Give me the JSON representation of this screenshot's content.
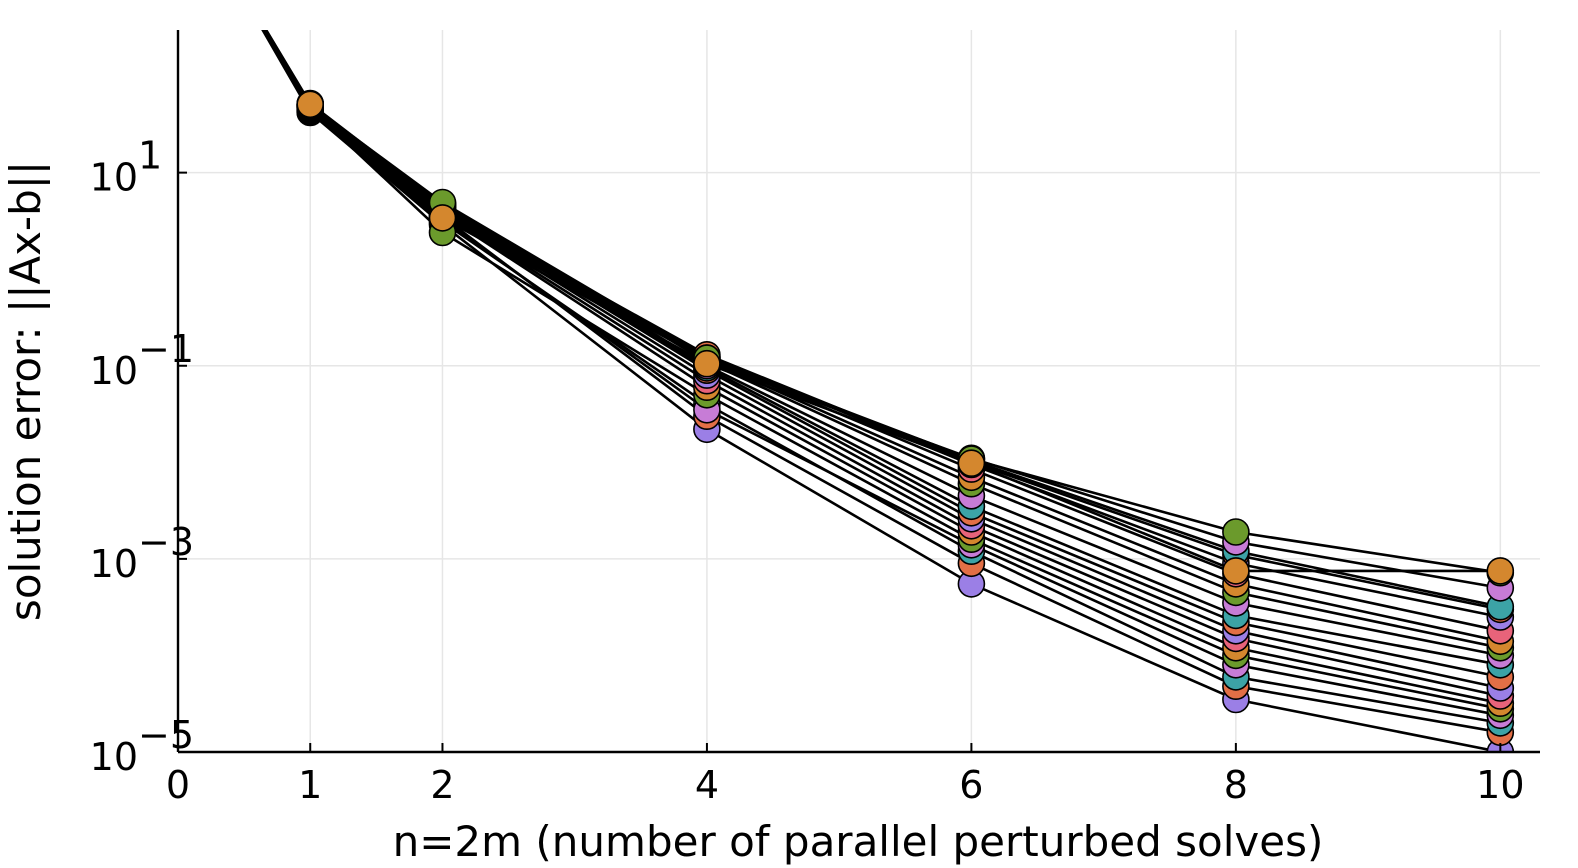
{
  "chart_data": {
    "type": "line",
    "xlabel": "n=2m (number of parallel perturbed solves)",
    "ylabel": "solution error: ||Ax-b||",
    "xlim": [
      0,
      10.3
    ],
    "ylim": [
      1e-05,
      300
    ],
    "yscale": "log",
    "grid": true,
    "legend": "none",
    "x_ticks": [
      {
        "value": 0,
        "label": "0"
      },
      {
        "value": 1,
        "label": "1"
      },
      {
        "value": 2,
        "label": "2"
      },
      {
        "value": 4,
        "label": "4"
      },
      {
        "value": 6,
        "label": "6"
      },
      {
        "value": 8,
        "label": "8"
      },
      {
        "value": 10,
        "label": "10"
      }
    ],
    "y_ticks": [
      {
        "value": 10,
        "base": "10",
        "exp": "1"
      },
      {
        "value": 0.1,
        "base": "10",
        "exp": "−1"
      },
      {
        "value": 0.001,
        "base": "10",
        "exp": "−3"
      },
      {
        "value": 1e-05,
        "base": "10",
        "exp": "−5"
      }
    ],
    "colors": [
      "#9b7fe6",
      "#e26f46",
      "#3ca3a6",
      "#c77cd6",
      "#6b9a2c",
      "#d4872e",
      "#e8637a"
    ],
    "x": [
      0,
      1,
      2,
      4,
      6,
      8,
      10
    ],
    "series": [
      {
        "values": [
          10000,
          42,
          2.9,
          0.022,
          0.00055,
          3.5e-05,
          1e-05
        ]
      },
      {
        "values": [
          10000,
          43,
          3.5,
          0.03,
          0.0009,
          4.8e-05,
          1.6e-05
        ]
      },
      {
        "values": [
          10000,
          44,
          3.1,
          0.04,
          0.0012,
          6e-05,
          2e-05
        ]
      },
      {
        "values": [
          10000,
          45,
          3.3,
          0.035,
          0.0014,
          8e-05,
          2.4e-05
        ]
      },
      {
        "values": [
          10000,
          46,
          2.4,
          0.05,
          0.0016,
          0.0001,
          2.8e-05
        ]
      },
      {
        "values": [
          10000,
          47,
          3.7,
          0.06,
          0.0019,
          0.00012,
          3.2e-05
        ]
      },
      {
        "values": [
          10000,
          48,
          3.8,
          0.07,
          0.0022,
          0.00015,
          3.8e-05
        ]
      },
      {
        "values": [
          10000,
          49,
          4.0,
          0.08,
          0.0026,
          0.00018,
          4.6e-05
        ]
      },
      {
        "values": [
          10000,
          50,
          4.2,
          0.09,
          0.003,
          0.00022,
          6e-05
        ]
      },
      {
        "values": [
          10000,
          51,
          4.4,
          0.095,
          0.0035,
          0.00026,
          8e-05
        ]
      },
      {
        "values": [
          10000,
          52,
          4.6,
          0.1,
          0.0045,
          0.00035,
          0.0001
        ]
      },
      {
        "values": [
          10000,
          48,
          4.8,
          0.11,
          0.006,
          0.00045,
          0.00012
        ]
      },
      {
        "values": [
          10000,
          49,
          3.6,
          0.115,
          0.007,
          0.00055,
          0.00014
        ]
      },
      {
        "values": [
          10000,
          50,
          3.9,
          0.12,
          0.0085,
          0.0007,
          0.00018
        ]
      },
      {
        "values": [
          10000,
          51,
          4.1,
          0.125,
          0.0095,
          0.0009,
          0.00025
        ]
      },
      {
        "values": [
          10000,
          47,
          4.3,
          0.13,
          0.01,
          0.0011,
          0.0003
        ]
      },
      {
        "values": [
          10000,
          48,
          4.5,
          0.12,
          0.0105,
          0.0012,
          0.00032
        ]
      },
      {
        "values": [
          10000,
          49,
          4.7,
          0.11,
          0.011,
          0.0015,
          0.0005
        ]
      },
      {
        "values": [
          10000,
          50,
          4.9,
          0.12,
          0.0108,
          0.0019,
          0.00072
        ]
      },
      {
        "values": [
          10000,
          51,
          3.4,
          0.105,
          0.0098,
          0.00075,
          0.00075
        ]
      }
    ]
  }
}
